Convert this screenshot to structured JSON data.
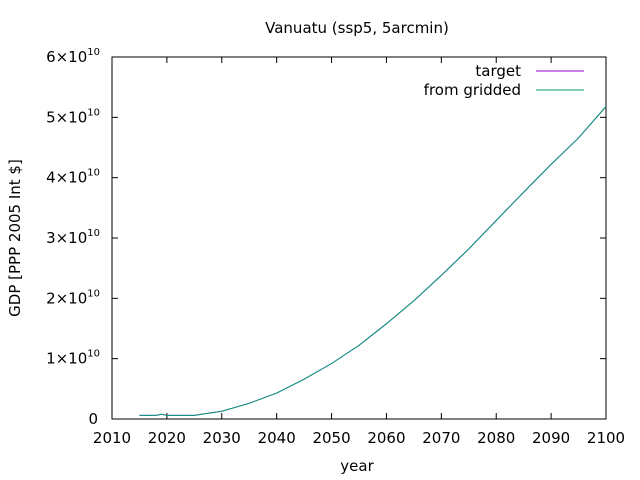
{
  "chart_data": {
    "type": "line",
    "title": "Vanuatu (ssp5, 5arcmin)",
    "xlabel": "year",
    "ylabel": "GDP [PPP 2005 Int $]",
    "xlim": [
      2010,
      2100
    ],
    "ylim": [
      0,
      60000000000
    ],
    "x_ticks": [
      "2010",
      "2020",
      "2030",
      "2040",
      "2050",
      "2060",
      "2070",
      "2080",
      "2090",
      "2100"
    ],
    "y_ticks": [
      {
        "value": 0,
        "mantissa": "0",
        "exp": ""
      },
      {
        "value": 10000000000,
        "mantissa": "1×10",
        "exp": "10"
      },
      {
        "value": 20000000000,
        "mantissa": "2×10",
        "exp": "10"
      },
      {
        "value": 30000000000,
        "mantissa": "3×10",
        "exp": "10"
      },
      {
        "value": 40000000000,
        "mantissa": "4×10",
        "exp": "10"
      },
      {
        "value": 50000000000,
        "mantissa": "5×10",
        "exp": "10"
      },
      {
        "value": 60000000000,
        "mantissa": "6×10",
        "exp": "10"
      }
    ],
    "legend_position": "top-right",
    "grid": false,
    "x": [
      2015,
      2018,
      2019,
      2020,
      2025,
      2030,
      2035,
      2040,
      2045,
      2050,
      2055,
      2060,
      2065,
      2070,
      2075,
      2080,
      2085,
      2090,
      2095,
      2100
    ],
    "series": [
      {
        "name": "target",
        "color": "#9400d3",
        "values": [
          600000000.0,
          600000000.0,
          800000000.0,
          600000000.0,
          600000000.0,
          1300000000.0,
          2600000000.0,
          4300000000.0,
          6600000000.0,
          9200000000.0,
          12200000000.0,
          15800000000.0,
          19600000000.0,
          23800000000.0,
          28200000000.0,
          32900000000.0,
          37600000000.0,
          42200000000.0,
          46600000000.0,
          51800000000.0
        ]
      },
      {
        "name": "from gridded",
        "color": "#009e73",
        "values": [
          600000000.0,
          600000000.0,
          800000000.0,
          600000000.0,
          600000000.0,
          1300000000.0,
          2600000000.0,
          4300000000.0,
          6600000000.0,
          9200000000.0,
          12200000000.0,
          15800000000.0,
          19600000000.0,
          23800000000.0,
          28200000000.0,
          32900000000.0,
          37600000000.0,
          42200000000.0,
          46600000000.0,
          51800000000.0
        ]
      }
    ]
  }
}
